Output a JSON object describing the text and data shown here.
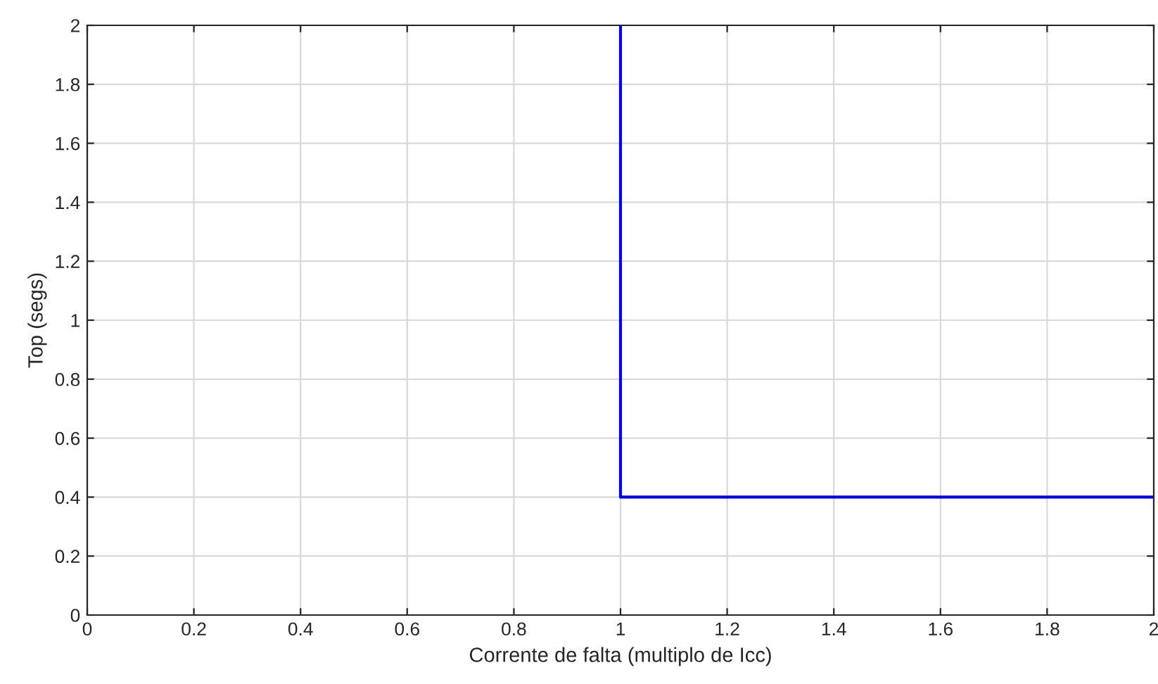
{
  "chart_data": {
    "type": "step",
    "xlabel": "Corrente de falta (multiplo de Icc)",
    "ylabel": "Top (segs)",
    "series": [
      {
        "color": "#0000ff",
        "x": [
          1,
          2
        ],
        "values": [
          2,
          0.4
        ]
      }
    ],
    "xlim": [
      0,
      2
    ],
    "xticks": [
      0,
      0.2,
      0.4,
      0.6,
      0.8,
      1,
      1.2,
      1.4,
      1.6,
      1.8,
      2
    ],
    "ylim": [
      0,
      2
    ],
    "yticks": [
      0,
      0.2,
      0.4,
      0.6,
      0.8,
      1,
      1.2,
      1.4,
      1.6,
      1.8,
      2
    ],
    "grid": true
  }
}
